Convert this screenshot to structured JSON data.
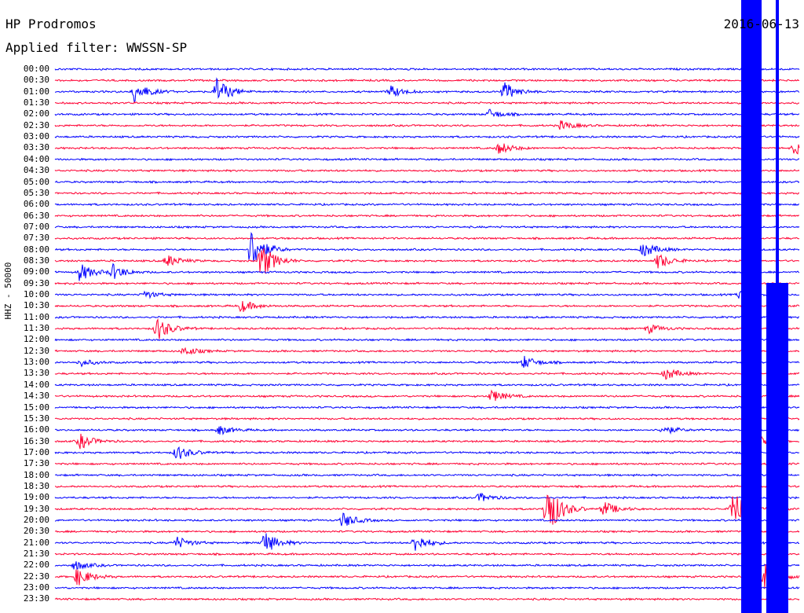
{
  "header": {
    "station": "HP Prodromos",
    "filter_label": "Applied filter: WWSSN-SP",
    "date": "2016-06-13"
  },
  "colors": {
    "blue": "#0000ff",
    "red": "#ff0033"
  },
  "chart_data": {
    "type": "line",
    "title": "HP Prodromos",
    "ylabel": "HHZ - 50000",
    "rows_per_hour": 2,
    "tick_labels": [
      "00:00",
      "00:30",
      "01:00",
      "01:30",
      "02:00",
      "02:30",
      "03:00",
      "03:30",
      "04:00",
      "04:30",
      "05:00",
      "05:30",
      "06:00",
      "06:30",
      "07:00",
      "07:30",
      "08:00",
      "08:30",
      "09:00",
      "09:30",
      "10:00",
      "10:30",
      "11:00",
      "11:30",
      "12:00",
      "12:30",
      "13:00",
      "13:30",
      "14:00",
      "14:30",
      "15:00",
      "15:30",
      "16:00",
      "16:30",
      "17:00",
      "17:30",
      "18:00",
      "18:30",
      "19:00",
      "19:30",
      "20:00",
      "20:30",
      "21:00",
      "21:30",
      "22:00",
      "22:30",
      "23:00",
      "23:30"
    ],
    "row_colors": [
      "blue",
      "red"
    ],
    "x_range_minutes": [
      0,
      30
    ],
    "events": [
      {
        "row": 2,
        "minute": 3.2,
        "amp": 14
      },
      {
        "row": 2,
        "minute": 6.5,
        "amp": 18
      },
      {
        "row": 2,
        "minute": 13.5,
        "amp": 8
      },
      {
        "row": 2,
        "minute": 18.1,
        "amp": 12
      },
      {
        "row": 4,
        "minute": 17.5,
        "amp": 6
      },
      {
        "row": 5,
        "minute": 20.4,
        "amp": 6
      },
      {
        "row": 7,
        "minute": 17.9,
        "amp": 8
      },
      {
        "row": 7,
        "minute": 29.8,
        "amp": 8
      },
      {
        "row": 16,
        "minute": 7.9,
        "amp": 28
      },
      {
        "row": 16,
        "minute": 23.7,
        "amp": 10
      },
      {
        "row": 17,
        "minute": 4.5,
        "amp": 8
      },
      {
        "row": 17,
        "minute": 8.3,
        "amp": 24
      },
      {
        "row": 17,
        "minute": 24.3,
        "amp": 10
      },
      {
        "row": 18,
        "minute": 1.0,
        "amp": 12
      },
      {
        "row": 18,
        "minute": 2.3,
        "amp": 10
      },
      {
        "row": 20,
        "minute": 3.6,
        "amp": 5
      },
      {
        "row": 20,
        "minute": 27.6,
        "amp": 6
      },
      {
        "row": 21,
        "minute": 7.5,
        "amp": 8
      },
      {
        "row": 23,
        "minute": 4.1,
        "amp": 16
      },
      {
        "row": 23,
        "minute": 23.9,
        "amp": 6
      },
      {
        "row": 25,
        "minute": 5.2,
        "amp": 6
      },
      {
        "row": 26,
        "minute": 1.0,
        "amp": 5
      },
      {
        "row": 26,
        "minute": 18.9,
        "amp": 8
      },
      {
        "row": 27,
        "minute": 24.6,
        "amp": 8
      },
      {
        "row": 29,
        "minute": 17.6,
        "amp": 8
      },
      {
        "row": 32,
        "minute": 6.6,
        "amp": 6
      },
      {
        "row": 32,
        "minute": 24.5,
        "amp": 6
      },
      {
        "row": 33,
        "minute": 1.0,
        "amp": 10
      },
      {
        "row": 33,
        "minute": 27.9,
        "amp": 18
      },
      {
        "row": 34,
        "minute": 4.9,
        "amp": 10
      },
      {
        "row": 38,
        "minute": 17.1,
        "amp": 6
      },
      {
        "row": 39,
        "minute": 19.8,
        "amp": 40
      },
      {
        "row": 39,
        "minute": 22.1,
        "amp": 10
      },
      {
        "row": 39,
        "minute": 27.3,
        "amp": 26
      },
      {
        "row": 40,
        "minute": 11.6,
        "amp": 10
      },
      {
        "row": 42,
        "minute": 4.9,
        "amp": 8
      },
      {
        "row": 42,
        "minute": 8.4,
        "amp": 16
      },
      {
        "row": 42,
        "minute": 14.5,
        "amp": 12
      },
      {
        "row": 44,
        "minute": 0.8,
        "amp": 6
      },
      {
        "row": 45,
        "minute": 0.9,
        "amp": 12
      },
      {
        "row": 45,
        "minute": 28.6,
        "amp": 18
      }
    ],
    "large_event": {
      "start_row": 0,
      "minute": 30.0,
      "note": "saturated trace at end of record"
    }
  }
}
